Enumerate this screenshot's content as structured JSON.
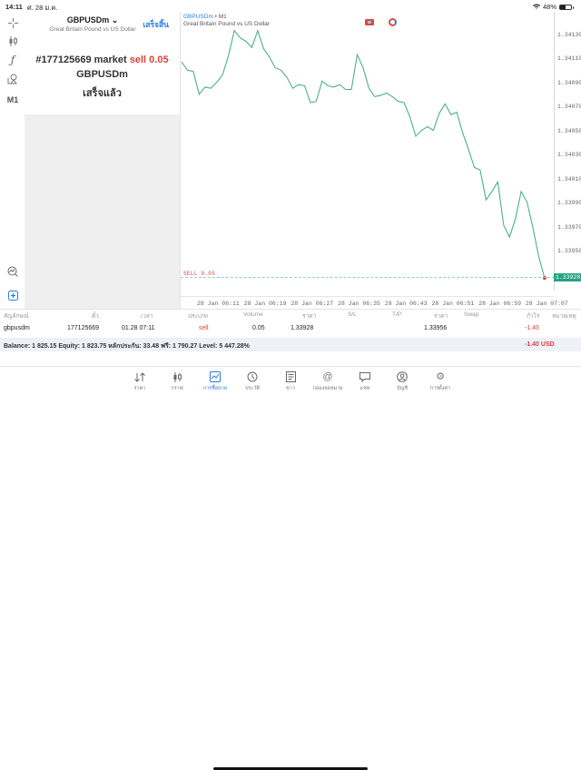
{
  "status_bar": {
    "time": "14:11",
    "date": "ศ. 28 ม.ค.",
    "battery": "48%",
    "wifi_icon": "wifi-icon"
  },
  "left_tools": [
    {
      "name": "crosshair-icon",
      "glyph": "✛"
    },
    {
      "name": "candlestick-icon",
      "glyph": "ⅱ"
    },
    {
      "name": "function-icon",
      "glyph": "ƒ"
    },
    {
      "name": "objects-icon",
      "glyph": "⌂"
    },
    {
      "name": "timeframe",
      "glyph": "M1"
    },
    {
      "name": "chart-search-icon",
      "glyph": "⌕"
    },
    {
      "name": "new-order-icon",
      "glyph": "⊞"
    }
  ],
  "order_panel": {
    "symbol": "GBPUSDm",
    "symbol_dropdown": "⌄",
    "description": "Great Britain Pound vs US Dollar",
    "done_button": "เสร็จสิ้น",
    "ticket_text": "#177125669 market",
    "action_text": "sell 0.05",
    "result_symbol": "GBPUSDm",
    "result_status": "เสร็จแล้ว"
  },
  "chart": {
    "header_symbol": "GBPUSDm",
    "header_timeframe": " • M1",
    "header_description": "Great Britain Pound vs US Dollar",
    "sell_line_label": "SELL 0.05",
    "current_price": "1.33928",
    "line_color": "#4caf8c"
  },
  "chart_data": {
    "type": "line",
    "title": "GBPUSDm • M1",
    "subtitle": "Great Britain Pound vs US Dollar",
    "xlabel": "",
    "ylabel": "",
    "y_ticks": [
      "1.34130",
      "1.34110",
      "1.34090",
      "1.34070",
      "1.34050",
      "1.34030",
      "1.34010",
      "1.33990",
      "1.33970",
      "1.33950"
    ],
    "x_ticks": [
      "28 Jan 06:11",
      "28 Jan 06:19",
      "28 Jan 06:27",
      "28 Jan 06:35",
      "28 Jan 06:43",
      "28 Jan 06:51",
      "28 Jan 06:59",
      "28 Jan 07:07"
    ],
    "ylim": [
      1.3392,
      1.3415
    ],
    "grid": false,
    "annotations": [
      {
        "label": "SELL 0.05",
        "price": 1.33928
      }
    ],
    "series": [
      {
        "name": "GBPUSDm close",
        "x": [
          "06:05",
          "06:06",
          "06:07",
          "06:08",
          "06:09",
          "06:10",
          "06:11",
          "06:12",
          "06:13",
          "06:14",
          "06:15",
          "06:16",
          "06:17",
          "06:18",
          "06:19",
          "06:20",
          "06:21",
          "06:22",
          "06:23",
          "06:24",
          "06:25",
          "06:26",
          "06:27",
          "06:28",
          "06:29",
          "06:30",
          "06:31",
          "06:32",
          "06:33",
          "06:34",
          "06:35",
          "06:36",
          "06:37",
          "06:38",
          "06:39",
          "06:40",
          "06:41",
          "06:42",
          "06:43",
          "06:44",
          "06:45",
          "06:46",
          "06:47",
          "06:48",
          "06:49",
          "06:50",
          "06:51",
          "06:52",
          "06:53",
          "06:54",
          "06:55",
          "06:56",
          "06:57",
          "06:58",
          "06:59",
          "07:00",
          "07:01",
          "07:02",
          "07:03",
          "07:04",
          "07:05",
          "07:06",
          "07:07"
        ],
        "values": [
          1.34108,
          1.34101,
          1.341,
          1.34081,
          1.34087,
          1.34086,
          1.34091,
          1.34097,
          1.34113,
          1.34134,
          1.34128,
          1.34125,
          1.3412,
          1.34134,
          1.34119,
          1.34112,
          1.34103,
          1.34101,
          1.34095,
          1.34086,
          1.34089,
          1.34088,
          1.34074,
          1.34075,
          1.34092,
          1.34088,
          1.34087,
          1.34089,
          1.34085,
          1.34085,
          1.34114,
          1.34103,
          1.34086,
          1.34079,
          1.3408,
          1.34082,
          1.34079,
          1.34075,
          1.34074,
          1.34062,
          1.34046,
          1.34051,
          1.34054,
          1.34051,
          1.34065,
          1.34073,
          1.34064,
          1.34066,
          1.34049,
          1.34035,
          1.3402,
          1.34018,
          1.33993,
          1.34,
          1.34008,
          1.33972,
          1.33962,
          1.33977,
          1.34,
          1.33991,
          1.3397,
          1.33946,
          1.33928
        ]
      }
    ]
  },
  "positions_table": {
    "headers": [
      "สัญลักษณ์",
      "ตั๋ว",
      "เวลา",
      "ประเภท",
      "Volume",
      "ราคา",
      "S/L",
      "T/P",
      "ราคา",
      "Swap",
      "กำไร",
      "หมายเหตุ"
    ],
    "rows": [
      {
        "symbol": "gbpusdm",
        "ticket": "177125669",
        "time": "01.28 07:11",
        "type": "sell",
        "volume": "0.05",
        "open_price": "1.33928",
        "sl": "",
        "tp": "",
        "current_price": "1.33956",
        "swap": "",
        "profit": "-1.40",
        "comment": ""
      }
    ],
    "summary": "Balance: 1 825.15 Equity: 1 823.75 หลักประกัน: 33.48 ฟรี: 1 790.27 Level: 5 447.28%",
    "total_profit": "-1.40  USD"
  },
  "tab_bar": [
    {
      "id": "quotes",
      "label": "ราคา",
      "icon": "⇅",
      "active": false
    },
    {
      "id": "charts",
      "label": "กราฟ",
      "icon": "ⅱ",
      "active": false
    },
    {
      "id": "trade",
      "label": "การซื้อขาย",
      "icon": "▨",
      "active": true
    },
    {
      "id": "history",
      "label": "ประวัติ",
      "icon": "◷",
      "active": false
    },
    {
      "id": "news",
      "label": "ข่าว",
      "icon": "▤",
      "active": false
    },
    {
      "id": "mailbox",
      "label": "กล่องจดหมาย",
      "icon": "@",
      "active": false
    },
    {
      "id": "chat",
      "label": "แชท",
      "icon": "▭",
      "active": false
    },
    {
      "id": "account",
      "label": "บัญชี",
      "icon": "◉",
      "active": false
    },
    {
      "id": "settings",
      "label": "การตั้งค่า",
      "icon": "⚙",
      "active": false
    }
  ]
}
